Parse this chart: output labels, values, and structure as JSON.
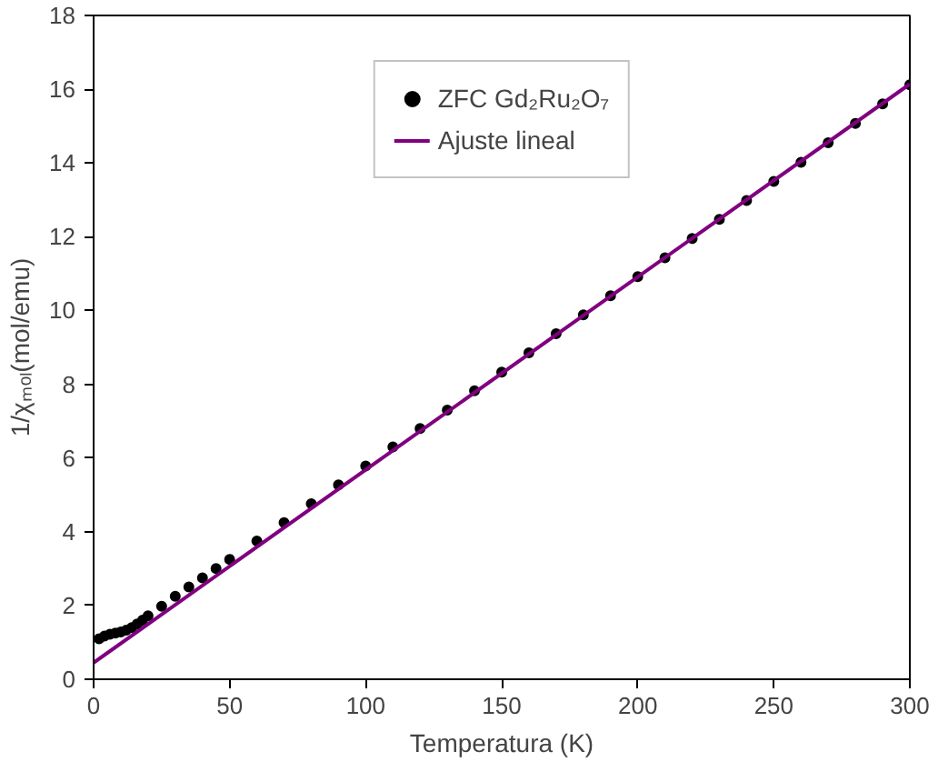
{
  "chart_data": {
    "type": "scatter",
    "xlabel": "Temperatura (K)",
    "ylabel": "1/χₘₒₗ(mol/emu)",
    "xlim": [
      0,
      300
    ],
    "ylim": [
      0,
      18
    ],
    "xticks": [
      0,
      50,
      100,
      150,
      200,
      250,
      300
    ],
    "yticks": [
      0,
      2,
      4,
      6,
      8,
      10,
      12,
      14,
      16,
      18
    ],
    "grid": false,
    "legend": "top",
    "series": [
      {
        "name": "ZFC Gd₂Ru₂O₇",
        "marker": "circle",
        "color": "#000000",
        "x": [
          2,
          4,
          6,
          8,
          10,
          12,
          14,
          16,
          18,
          20,
          25,
          30,
          35,
          40,
          45,
          50,
          60,
          70,
          80,
          90,
          100,
          110,
          120,
          130,
          140,
          150,
          160,
          170,
          180,
          190,
          200,
          210,
          220,
          230,
          240,
          250,
          260,
          270,
          280,
          290,
          300
        ],
        "values": [
          1.1,
          1.17,
          1.22,
          1.25,
          1.28,
          1.33,
          1.4,
          1.5,
          1.6,
          1.72,
          1.98,
          2.25,
          2.5,
          2.75,
          3.0,
          3.25,
          3.75,
          4.25,
          4.76,
          5.27,
          5.78,
          6.3,
          6.8,
          7.3,
          7.82,
          8.33,
          8.85,
          9.37,
          9.88,
          10.4,
          10.92,
          11.43,
          11.95,
          12.47,
          12.98,
          13.5,
          14.02,
          14.55,
          15.07,
          15.6,
          16.12
        ]
      },
      {
        "name": "Ajuste lineal",
        "type": "line",
        "color": "#800080",
        "line_style": "solid",
        "x": [
          0,
          300
        ],
        "values": [
          0.45,
          16.14
        ]
      }
    ]
  }
}
